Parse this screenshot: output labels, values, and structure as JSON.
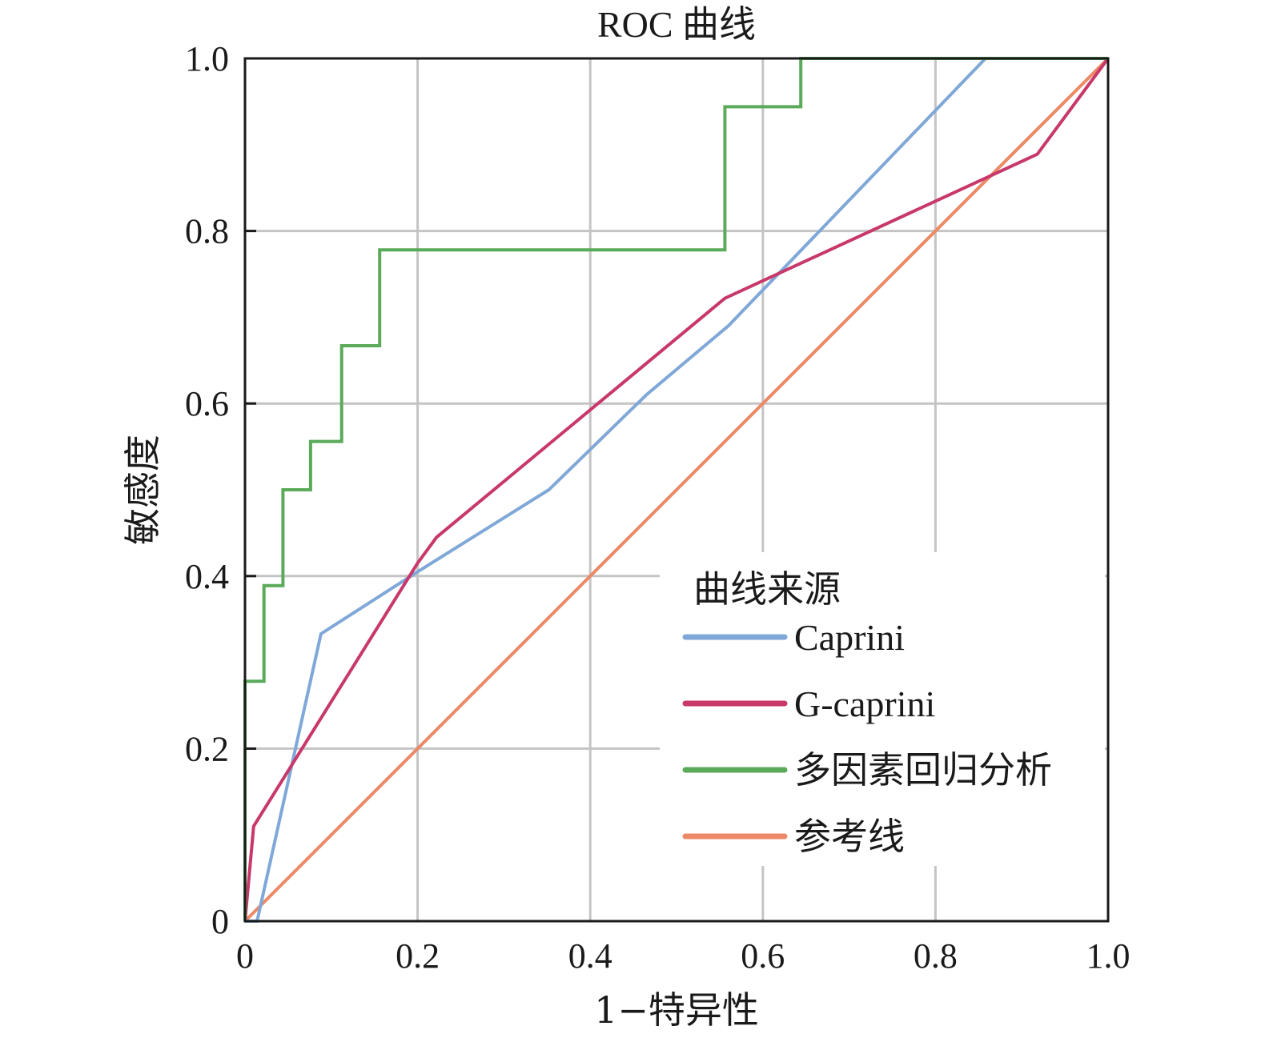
{
  "chart_data": {
    "type": "line",
    "title": "ROC 曲线",
    "xlabel": "1−特异性",
    "ylabel": "敏感度",
    "xlim": [
      0,
      1
    ],
    "ylim": [
      0,
      1
    ],
    "grid": true,
    "x_ticks": [
      "0",
      "0.2",
      "0.4",
      "0.6",
      "0.8",
      "1.0"
    ],
    "y_ticks": [
      "0",
      "0.2",
      "0.4",
      "0.6",
      "0.8",
      "1.0"
    ],
    "legend": {
      "title": "曲线来源",
      "position": "lower-right"
    },
    "series": [
      {
        "name": "Caprini",
        "color": "#7fa8d8",
        "points": [
          [
            0,
            0
          ],
          [
            0.014,
            0
          ],
          [
            0.088,
            0.333
          ],
          [
            0.2,
            0.405
          ],
          [
            0.352,
            0.5
          ],
          [
            0.465,
            0.61
          ],
          [
            0.56,
            0.69
          ],
          [
            0.858,
            1.0
          ],
          [
            1.0,
            1.0
          ]
        ]
      },
      {
        "name": "G-caprini",
        "color": "#c8386a",
        "points": [
          [
            0,
            0
          ],
          [
            0.01,
            0.11
          ],
          [
            0.2,
            0.415
          ],
          [
            0.222,
            0.445
          ],
          [
            0.556,
            0.722
          ],
          [
            0.918,
            0.889
          ],
          [
            1.0,
            1.0
          ]
        ]
      },
      {
        "name": "多因素回归分析",
        "color": "#5aaa5a",
        "points": [
          [
            0,
            0
          ],
          [
            0,
            0.278
          ],
          [
            0.022,
            0.278
          ],
          [
            0.022,
            0.389
          ],
          [
            0.044,
            0.389
          ],
          [
            0.044,
            0.5
          ],
          [
            0.076,
            0.5
          ],
          [
            0.076,
            0.556
          ],
          [
            0.112,
            0.556
          ],
          [
            0.112,
            0.667
          ],
          [
            0.156,
            0.667
          ],
          [
            0.156,
            0.778
          ],
          [
            0.556,
            0.778
          ],
          [
            0.556,
            0.944
          ],
          [
            0.644,
            0.944
          ],
          [
            0.644,
            1.0
          ],
          [
            1.0,
            1.0
          ]
        ]
      },
      {
        "name": "参考线",
        "color": "#ec8a68",
        "points": [
          [
            0,
            0
          ],
          [
            1,
            1
          ]
        ]
      }
    ]
  }
}
